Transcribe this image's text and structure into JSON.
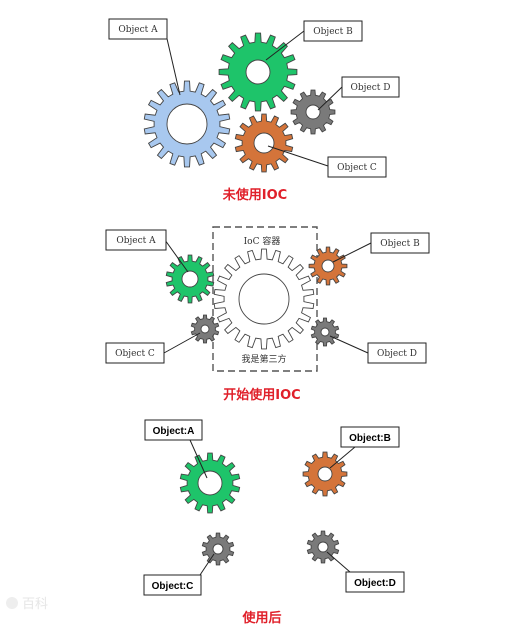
{
  "colors": {
    "blue": "#a8c8ef",
    "green": "#1ec46a",
    "orange": "#d4743a",
    "gray": "#7a7a7a",
    "white": "#ffffff",
    "caption": "#e0202a"
  },
  "section1": {
    "caption": "未使用IOC",
    "labels": {
      "a": "Object A",
      "b": "Object B",
      "c": "Object C",
      "d": "Object D"
    }
  },
  "section2": {
    "caption": "开始使用IOC",
    "container_label": "IoC 容器",
    "third_party_label": "我是第三方",
    "labels": {
      "a": "Object A",
      "b": "Object B",
      "c": "Object C",
      "d": "Object D"
    }
  },
  "section3": {
    "caption": "使用后",
    "labels": {
      "a": "Object:A",
      "b": "Object:B",
      "c": "Object:C",
      "d": "Object:D"
    }
  },
  "watermark": "百科"
}
